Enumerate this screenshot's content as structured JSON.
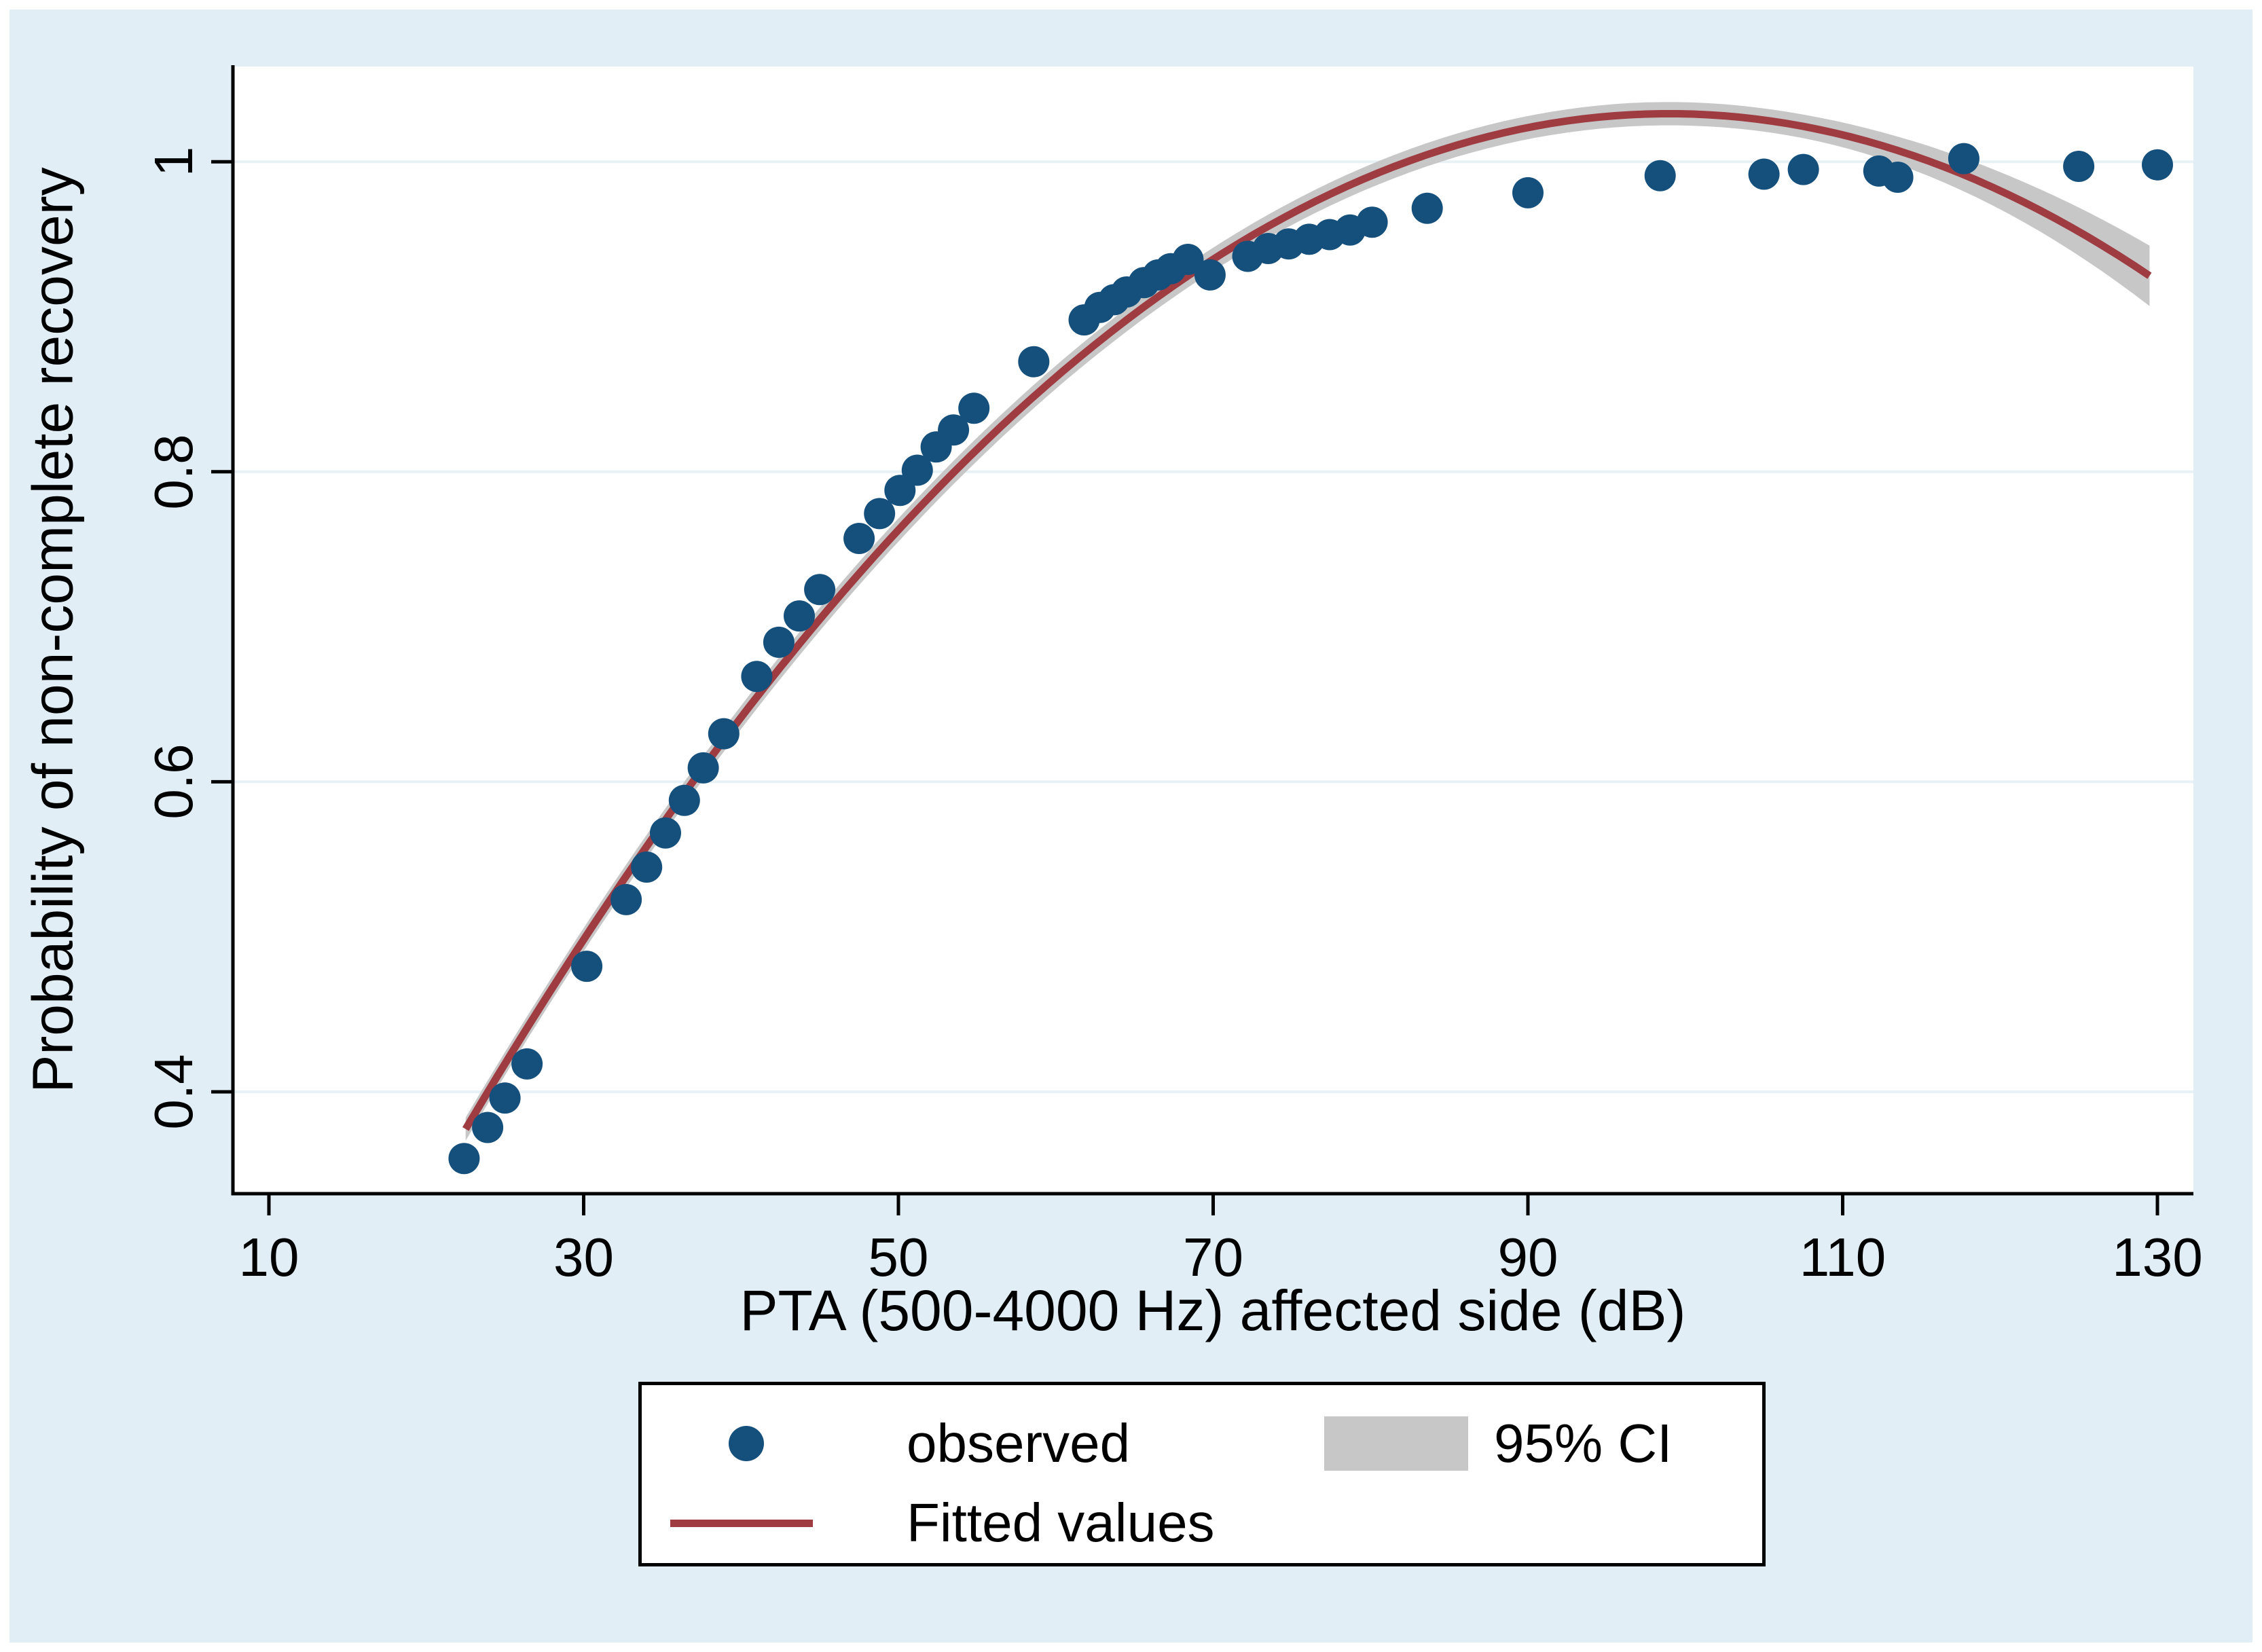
{
  "figure": {
    "background_color": "#e1eef5",
    "plot_background": "#ffffff"
  },
  "colors": {
    "dot": "#15507d",
    "fit_line": "#9e3c42",
    "ci_band": "#c7c7c7",
    "grid": "#e8f1f6",
    "axis": "#000000"
  },
  "chart_data": {
    "type": "scatter",
    "title": "",
    "xlabel": "PTA (500-4000 Hz) affected side (dB)",
    "ylabel": "Probability of non-complete recovery",
    "xlim": [
      7.7,
      132.3
    ],
    "ylim": [
      0.334,
      1.061
    ],
    "x_ticks": [
      10,
      30,
      50,
      70,
      90,
      110,
      130
    ],
    "y_ticks": [
      1,
      0.8,
      0.6,
      0.4
    ],
    "y_tick_labels": [
      "1",
      "0.8",
      "0.6",
      "0.4"
    ],
    "grid": "horizontal",
    "series": [
      {
        "name": "observed",
        "type": "scatter",
        "color": "#15507d",
        "points": [
          [
            22.4,
            0.357
          ],
          [
            23.9,
            0.377
          ],
          [
            25.0,
            0.396
          ],
          [
            26.4,
            0.418
          ],
          [
            30.2,
            0.481
          ],
          [
            32.7,
            0.524
          ],
          [
            34.0,
            0.545
          ],
          [
            35.2,
            0.567
          ],
          [
            36.4,
            0.588
          ],
          [
            37.6,
            0.609
          ],
          [
            38.9,
            0.631
          ],
          [
            41.0,
            0.668
          ],
          [
            42.4,
            0.69
          ],
          [
            43.7,
            0.707
          ],
          [
            45.0,
            0.724
          ],
          [
            47.5,
            0.757
          ],
          [
            48.8,
            0.773
          ],
          [
            50.1,
            0.788
          ],
          [
            51.2,
            0.801
          ],
          [
            52.4,
            0.816
          ],
          [
            53.5,
            0.827
          ],
          [
            54.8,
            0.841
          ],
          [
            58.6,
            0.871
          ],
          [
            61.8,
            0.898
          ],
          [
            62.8,
            0.906
          ],
          [
            63.7,
            0.911
          ],
          [
            64.5,
            0.916
          ],
          [
            65.6,
            0.922
          ],
          [
            66.5,
            0.927
          ],
          [
            67.3,
            0.931
          ],
          [
            68.4,
            0.937
          ],
          [
            69.8,
            0.927
          ],
          [
            72.2,
            0.939
          ],
          [
            73.5,
            0.944
          ],
          [
            74.8,
            0.947
          ],
          [
            76.1,
            0.95
          ],
          [
            77.4,
            0.953
          ],
          [
            78.7,
            0.956
          ],
          [
            80.1,
            0.961
          ],
          [
            83.6,
            0.97
          ],
          [
            90.0,
            0.98
          ],
          [
            98.4,
            0.991
          ],
          [
            105.0,
            0.992
          ],
          [
            107.5,
            0.995
          ],
          [
            112.3,
            0.994
          ],
          [
            113.5,
            0.99
          ],
          [
            117.7,
            1.002
          ],
          [
            125.0,
            0.997
          ],
          [
            130.0,
            0.998
          ]
        ]
      },
      {
        "name": "Fitted values",
        "type": "quadratic_line",
        "color": "#9e3c42",
        "coefficients": {
          "a0": -0.066272,
          "a1": 0.022178,
          "a2": -0.000112065
        },
        "domain": [
          22.5,
          130
        ],
        "peak": [
          98.9,
          1.031
        ],
        "end_value": [
          130,
          0.923
        ]
      },
      {
        "name": "95% CI",
        "type": "band",
        "color": "#c7c7c7",
        "half_width_base": 0.0075,
        "widen_from_x": 105,
        "widen_coef": 2e-05
      }
    ],
    "legend": {
      "position": "bottom",
      "entries": [
        {
          "marker": "dot",
          "label": "observed"
        },
        {
          "marker": "band",
          "label": "95% CI"
        },
        {
          "marker": "line",
          "label": "Fitted values"
        }
      ]
    }
  }
}
